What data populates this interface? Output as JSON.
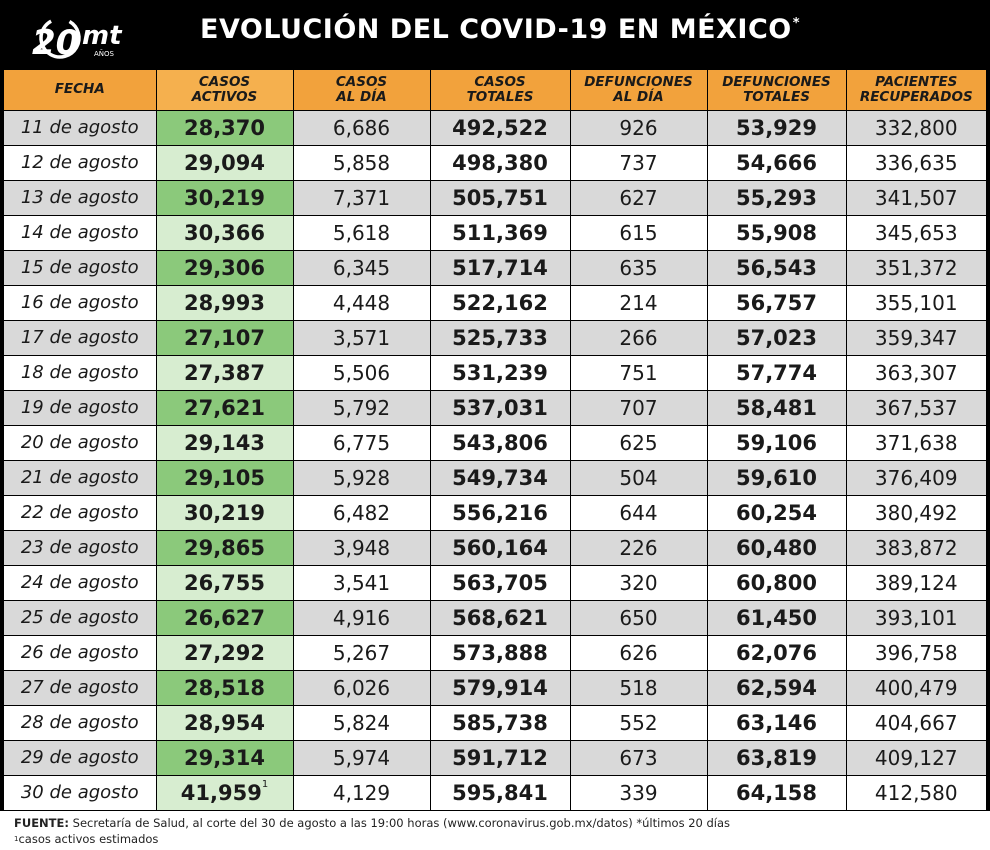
{
  "logo": {
    "text": "mt",
    "number": "20",
    "sub": "AÑOS"
  },
  "title": "EVOLUCIÓN DEL COVID-19 EN MÉXICO",
  "title_mark": "*",
  "chart_data": {
    "type": "table",
    "columns": [
      [
        "FECHA"
      ],
      [
        "CASOS",
        "ACTIVOS"
      ],
      [
        "CASOS",
        "AL DÍA"
      ],
      [
        "CASOS",
        "TOTALES"
      ],
      [
        "DEFUNCIONES",
        "AL DÍA"
      ],
      [
        "DEFUNCIONES",
        "TOTALES"
      ],
      [
        "PACIENTES",
        "RECUPERADOS"
      ]
    ],
    "rows": [
      [
        "11 de agosto",
        "28,370",
        "6,686",
        "492,522",
        "926",
        "53,929",
        "332,800"
      ],
      [
        "12 de agosto",
        "29,094",
        "5,858",
        "498,380",
        "737",
        "54,666",
        "336,635"
      ],
      [
        "13 de agosto",
        "30,219",
        "7,371",
        "505,751",
        "627",
        "55,293",
        "341,507"
      ],
      [
        "14 de agosto",
        "30,366",
        "5,618",
        "511,369",
        "615",
        "55,908",
        "345,653"
      ],
      [
        "15 de agosto",
        "29,306",
        "6,345",
        "517,714",
        "635",
        "56,543",
        "351,372"
      ],
      [
        "16 de agosto",
        "28,993",
        "4,448",
        "522,162",
        "214",
        "56,757",
        "355,101"
      ],
      [
        "17 de agosto",
        "27,107",
        "3,571",
        "525,733",
        "266",
        "57,023",
        "359,347"
      ],
      [
        "18 de agosto",
        "27,387",
        "5,506",
        "531,239",
        "751",
        "57,774",
        "363,307"
      ],
      [
        "19 de agosto",
        "27,621",
        "5,792",
        "537,031",
        "707",
        "58,481",
        "367,537"
      ],
      [
        "20 de agosto",
        "29,143",
        "6,775",
        "543,806",
        "625",
        "59,106",
        "371,638"
      ],
      [
        "21 de agosto",
        "29,105",
        "5,928",
        "549,734",
        "504",
        "59,610",
        "376,409"
      ],
      [
        "22 de agosto",
        "30,219",
        "6,482",
        "556,216",
        "644",
        "60,254",
        "380,492"
      ],
      [
        "23 de agosto",
        "29,865",
        "3,948",
        "560,164",
        "226",
        "60,480",
        "383,872"
      ],
      [
        "24 de agosto",
        "26,755",
        "3,541",
        "563,705",
        "320",
        "60,800",
        "389,124"
      ],
      [
        "25 de agosto",
        "26,627",
        "4,916",
        "568,621",
        "650",
        "61,450",
        "393,101"
      ],
      [
        "26 de agosto",
        "27,292",
        "5,267",
        "573,888",
        "626",
        "62,076",
        "396,758"
      ],
      [
        "27 de agosto",
        "28,518",
        "6,026",
        "579,914",
        "518",
        "62,594",
        "400,479"
      ],
      [
        "28 de agosto",
        "28,954",
        "5,824",
        "585,738",
        "552",
        "63,146",
        "404,667"
      ],
      [
        "29 de agosto",
        "29,314",
        "5,974",
        "591,712",
        "673",
        "63,819",
        "409,127"
      ],
      [
        "30 de agosto",
        "41,959",
        "4,129",
        "595,841",
        "339",
        "64,158",
        "412,580"
      ]
    ],
    "footnote_row_index": 19,
    "footnote_mark": "1"
  },
  "footer": {
    "label": "FUENTE:",
    "source": " Secretaría de Salud, al corte del 30 de agosto a las 19:00 horas (www.coronavirus.gob.mx/datos) *últimos 20 días",
    "note_mark": "1",
    "note": "casos activos estimados"
  },
  "colors": {
    "header_bg": "#000000",
    "column_header_bg": "#f2a23c",
    "active_dark": "#8bc97b",
    "active_light": "#d7edd0",
    "row_gray": "#d9d9d9",
    "row_white": "#ffffff"
  }
}
